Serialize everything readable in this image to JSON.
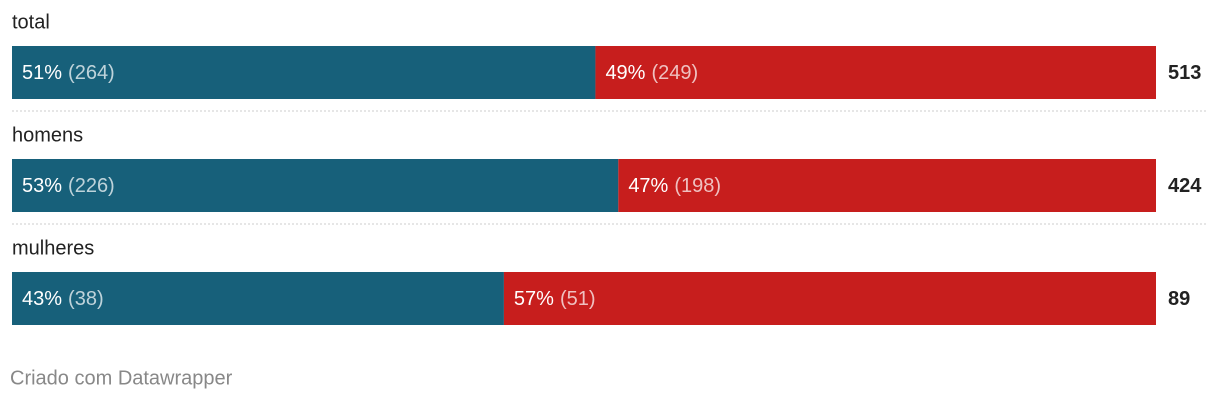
{
  "chart_data": {
    "type": "stacked-bar-100",
    "categories": [
      "total",
      "homens",
      "mulheres"
    ],
    "xlim": [
      0,
      100
    ],
    "series": [
      {
        "color": "#17607a",
        "values": [
          51,
          53,
          43
        ],
        "value_labels": [
          "51%",
          "53%",
          "43%"
        ],
        "count_labels": [
          "(264)",
          "(226)",
          "(38)"
        ]
      },
      {
        "color": "#c71e1d",
        "values": [
          49,
          47,
          57
        ],
        "value_labels": [
          "49%",
          "47%",
          "57%"
        ],
        "count_labels": [
          "(249)",
          "(198)",
          "(51)"
        ]
      }
    ],
    "totals": [
      513,
      424,
      89
    ],
    "footer": "Criado com Datawrapper"
  }
}
